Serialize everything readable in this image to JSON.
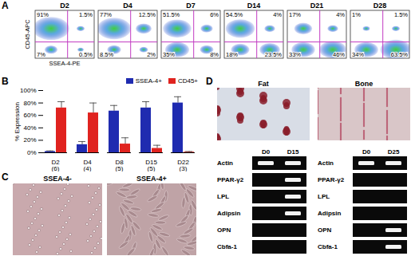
{
  "panel_labels": [
    "A",
    "B",
    "C",
    "D"
  ],
  "flow": {
    "y_label": "CD45-APC",
    "x_label": "SSEA-4-PE",
    "plots": [
      {
        "day": "D2",
        "quadrants": {
          "upper_left": {
            "value": 91,
            "label": "91%"
          },
          "upper_right": {
            "value": 1.5,
            "label": "1.5%"
          },
          "lower_left": {
            "value": 7,
            "label": "7%"
          },
          "lower_right": {
            "value": 0.5,
            "label": "0.5%"
          }
        }
      },
      {
        "day": "D4",
        "quadrants": {
          "upper_left": {
            "value": 77,
            "label": "77%"
          },
          "upper_right": {
            "value": 12.5,
            "label": "12.5%"
          },
          "lower_left": {
            "value": 8.5,
            "label": "8.5%"
          },
          "lower_right": {
            "value": 2,
            "label": "2%"
          }
        }
      },
      {
        "day": "D7",
        "quadrants": {
          "upper_left": {
            "value": 51.5,
            "label": "51.5%"
          },
          "upper_right": {
            "value": 6,
            "label": "6%"
          },
          "lower_left": {
            "value": 35,
            "label": "35%"
          },
          "lower_right": {
            "value": 8,
            "label": "8%"
          }
        }
      },
      {
        "day": "D14",
        "quadrants": {
          "upper_left": {
            "value": 54.5,
            "label": "54.5%"
          },
          "upper_right": {
            "value": 4,
            "label": "4%"
          },
          "lower_left": {
            "value": 18,
            "label": "18%"
          },
          "lower_right": {
            "value": 23.5,
            "label": "23.5%"
          }
        }
      },
      {
        "day": "D21",
        "quadrants": {
          "upper_left": {
            "value": 17,
            "label": "17%"
          },
          "upper_right": {
            "value": 4,
            "label": "4%"
          },
          "lower_left": {
            "value": 33,
            "label": "33%"
          },
          "lower_right": {
            "value": 46,
            "label": "46%"
          }
        }
      },
      {
        "day": "D28",
        "quadrants": {
          "upper_left": {
            "value": 1,
            "label": "1%"
          },
          "upper_right": {
            "value": 1.5,
            "label": "1.5%"
          },
          "lower_left": {
            "value": 34,
            "label": "34%"
          },
          "lower_right": {
            "value": 63.5,
            "label": "63.5%"
          }
        }
      }
    ]
  },
  "chart_data": {
    "type": "bar",
    "categories": [
      "D2\n(6)",
      "D4\n(4)",
      "D8\n(5)",
      "D15\n(5)",
      "D22\n(3)"
    ],
    "series": [
      {
        "name": "SSEA-4+",
        "color": "#1f2bb0",
        "values": [
          2,
          13,
          67,
          72,
          80
        ],
        "errors": [
          1,
          5,
          9,
          10,
          10
        ]
      },
      {
        "name": "CD45+",
        "color": "#e0231f",
        "values": [
          72,
          64,
          14,
          7,
          1
        ],
        "errors": [
          10,
          16,
          10,
          5,
          1
        ]
      }
    ],
    "y_label": "% Expression",
    "ylim": [
      0,
      100
    ],
    "yticks": [
      {
        "value": 0,
        "label": "0%"
      },
      {
        "value": 20,
        "label": "20%"
      },
      {
        "value": 40,
        "label": "40%"
      },
      {
        "value": 60,
        "label": "60%"
      },
      {
        "value": 80,
        "label": "80%"
      },
      {
        "value": 100,
        "label": "100%"
      }
    ],
    "grid": false,
    "legend": "top-right"
  },
  "micrographs": {
    "labels": [
      "SSEA-4-",
      "SSEA-4+"
    ]
  },
  "differentiation": {
    "stains": [
      "Fat",
      "Bone"
    ],
    "gels": [
      {
        "columns": [
          "D0",
          "D15"
        ],
        "rows": [
          {
            "name": "Actin",
            "bands": [
              true,
              true
            ]
          },
          {
            "name": "PPAR-γ2",
            "bands": [
              false,
              true
            ]
          },
          {
            "name": "LPL",
            "bands": [
              false,
              true
            ]
          },
          {
            "name": "Adipsin",
            "bands": [
              false,
              true
            ]
          },
          {
            "name": "OPN",
            "bands": [
              false,
              false
            ]
          },
          {
            "name": "Cbfa-1",
            "bands": [
              false,
              false
            ]
          }
        ]
      },
      {
        "columns": [
          "D0",
          "D25"
        ],
        "rows": [
          {
            "name": "Actin",
            "bands": [
              true,
              true
            ]
          },
          {
            "name": "PPAR-γ2",
            "bands": [
              false,
              false
            ]
          },
          {
            "name": "LPL",
            "bands": [
              false,
              false
            ]
          },
          {
            "name": "Adipsin",
            "bands": [
              false,
              false
            ]
          },
          {
            "name": "OPN",
            "bands": [
              false,
              true
            ]
          },
          {
            "name": "Cbfa-1",
            "bands": [
              false,
              true
            ]
          }
        ]
      }
    ]
  }
}
